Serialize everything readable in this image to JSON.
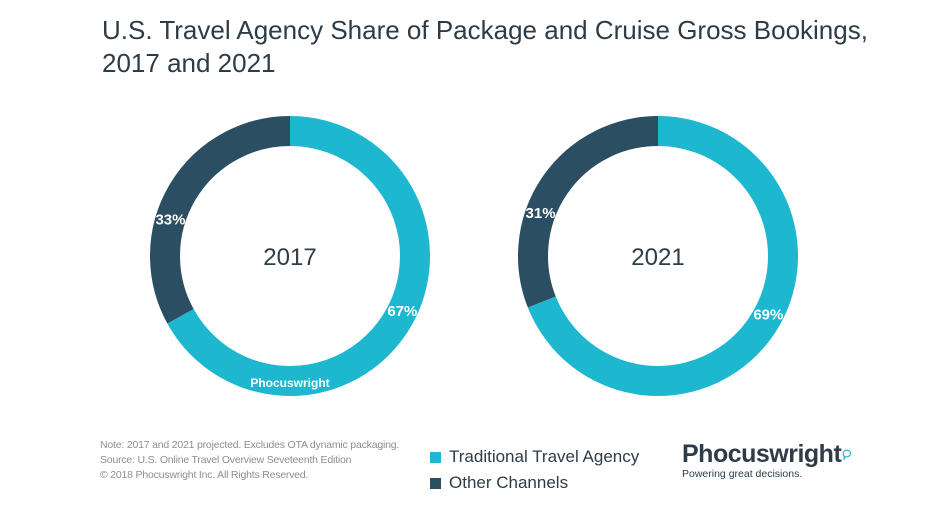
{
  "chart_data": [
    {
      "type": "pie",
      "center_label": "2017",
      "series": [
        {
          "name": "Traditional Travel Agency",
          "value": 67,
          "label": "67%",
          "color": "#1db8d0"
        },
        {
          "name": "Other Channels",
          "value": 33,
          "label": "33%",
          "color": "#2c4e63"
        }
      ]
    },
    {
      "type": "pie",
      "center_label": "2021",
      "series": [
        {
          "name": "Traditional Travel Agency",
          "value": 69,
          "label": "69%",
          "color": "#1db8d0"
        },
        {
          "name": "Other Channels",
          "value": 31,
          "label": "31%",
          "color": "#2c4e63"
        }
      ]
    }
  ],
  "title": {
    "line1": "U.S. Travel Agency Share of Package and Cruise Gross Bookings,",
    "line2": "2017 and 2021"
  },
  "legend": [
    {
      "label": "Traditional Travel Agency",
      "color": "#1db8d0"
    },
    {
      "label": "Other Channels",
      "color": "#2c4e63"
    }
  ],
  "notes": [
    "Note: 2017 and 2021 projected. Excludes OTA dynamic packaging.",
    "Source: U.S. Online Travel Overview Seveteenth Edition",
    "© 2018 Phocuswright Inc. All Rights Reserved."
  ],
  "watermark": "Phocuswright",
  "brand": {
    "name": "Phocuswright",
    "tagline": "Powering great decisions."
  }
}
